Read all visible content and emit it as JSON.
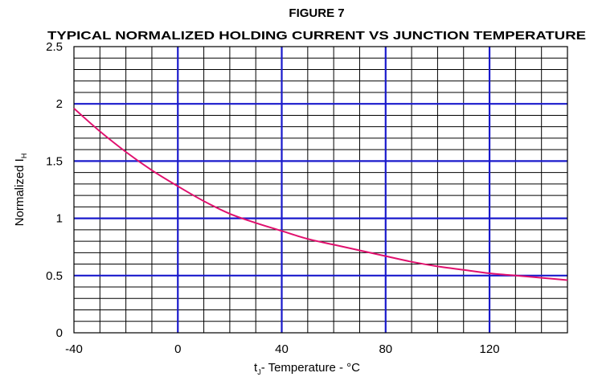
{
  "chart_data": {
    "type": "line",
    "figure_label": "FIGURE 7",
    "title": "TYPICAL NORMALIZED HOLDING CURRENT VS JUNCTION  TEMPERATURE",
    "xlabel": {
      "main": "t",
      "sub": "J",
      "rest": "- Temperature - °C"
    },
    "ylabel": {
      "main": "Normalized I",
      "sub": "H"
    },
    "xlim": [
      -40,
      150
    ],
    "ylim": [
      0,
      2.5
    ],
    "x_ticks": [
      -40,
      0,
      40,
      80,
      120
    ],
    "x_tick_labels": [
      "-40",
      "0",
      "40",
      "80",
      "120"
    ],
    "y_ticks": [
      0,
      0.5,
      1,
      1.5,
      2,
      2.5
    ],
    "y_tick_labels": [
      "0",
      "0.5",
      "1",
      "1.5",
      "2",
      "2.5"
    ],
    "x_minor_step": 10,
    "y_minor_step": 0.1,
    "grid": true,
    "colors": {
      "major_grid": "#1a1acc",
      "minor_grid": "#000000",
      "curve": "#e0106e",
      "frame": "#000000"
    },
    "series": [
      {
        "x": [
          -40,
          -30,
          -20,
          -10,
          0,
          10,
          20,
          30,
          40,
          50,
          60,
          70,
          80,
          90,
          100,
          110,
          120,
          130,
          140,
          150
        ],
        "y": [
          1.96,
          1.76,
          1.58,
          1.42,
          1.28,
          1.15,
          1.04,
          0.96,
          0.89,
          0.82,
          0.77,
          0.72,
          0.67,
          0.62,
          0.58,
          0.55,
          0.52,
          0.5,
          0.48,
          0.46
        ]
      }
    ]
  }
}
